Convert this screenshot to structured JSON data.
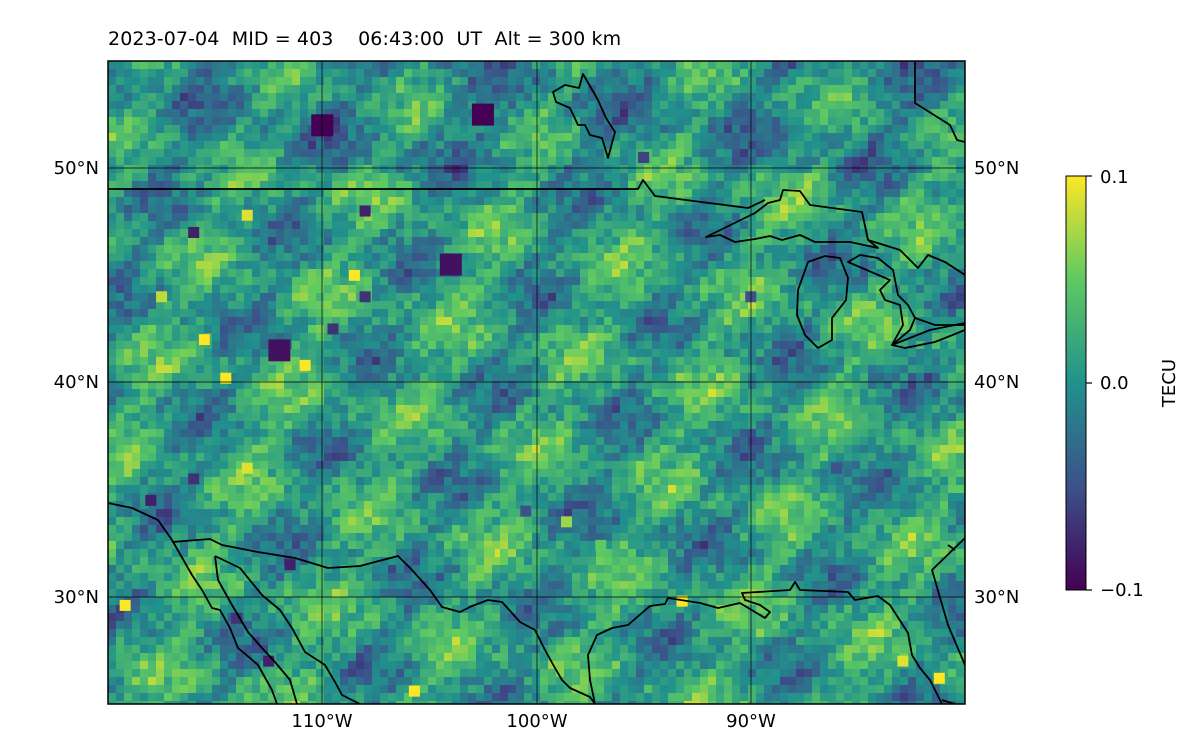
{
  "title": {
    "date": "2023-07-04",
    "mid": "MID = 403",
    "time": "06:43:00",
    "time_unit": "UT",
    "alt": "Alt = 300 km"
  },
  "map": {
    "projection": "PlateCarree",
    "lon_range": [
      -120,
      -80
    ],
    "lat_range": [
      25,
      55
    ],
    "gridlines": true,
    "features": [
      "coastlines",
      "borders"
    ]
  },
  "axes": {
    "lat_ticks": [
      {
        "value": 30,
        "label": "30°N"
      },
      {
        "value": 40,
        "label": "40°N"
      },
      {
        "value": 50,
        "label": "50°N"
      }
    ],
    "lon_ticks": [
      {
        "value": -110,
        "label": "110°W"
      },
      {
        "value": -100,
        "label": "100°W"
      },
      {
        "value": -90,
        "label": "90°W"
      }
    ]
  },
  "colorbar": {
    "label": "TECU",
    "colormap": "viridis",
    "min": -0.1,
    "max": 0.1,
    "ticks": [
      {
        "value": 0.1,
        "label": "0.1"
      },
      {
        "value": 0.0,
        "label": "0.0"
      },
      {
        "value": -0.1,
        "label": "−0.1"
      }
    ],
    "colors": [
      "#440154",
      "#3b528b",
      "#21918c",
      "#5ec962",
      "#fde725"
    ]
  },
  "chart_data": {
    "type": "heatmap",
    "x_axis": "longitude",
    "y_axis": "latitude",
    "value_unit": "TECU",
    "background_value": 0.01,
    "features": [
      {
        "name": "dark-blob",
        "lon": -110,
        "lat": 52,
        "value": -0.1
      },
      {
        "name": "dark-blob",
        "lon": -102.5,
        "lat": 52.5,
        "value": -0.1
      },
      {
        "name": "dark-blob",
        "lon": -104,
        "lat": 45.5,
        "value": -0.09
      },
      {
        "name": "dark-blob",
        "lon": -108,
        "lat": 48,
        "value": -0.08
      },
      {
        "name": "dark-blob",
        "lon": -115.5,
        "lat": 42,
        "value": -0.08
      },
      {
        "name": "dark-blob",
        "lon": -112,
        "lat": 41.5,
        "value": -0.09
      },
      {
        "name": "dark-blob",
        "lon": -116,
        "lat": 47,
        "value": -0.08
      },
      {
        "name": "dark-blob",
        "lon": -118,
        "lat": 34.5,
        "value": -0.08
      },
      {
        "name": "dark-blob",
        "lon": -116,
        "lat": 35.5,
        "value": -0.07
      },
      {
        "name": "dark-blob",
        "lon": -114,
        "lat": 29,
        "value": -0.07
      },
      {
        "name": "dark-blob",
        "lon": -112.5,
        "lat": 27,
        "value": -0.08
      },
      {
        "name": "dark-blob",
        "lon": -111.5,
        "lat": 31.5,
        "value": -0.08
      },
      {
        "name": "dark-blob",
        "lon": -108,
        "lat": 44,
        "value": -0.07
      },
      {
        "name": "dark-blob",
        "lon": -109.5,
        "lat": 42.5,
        "value": -0.07
      },
      {
        "name": "dark-blob",
        "lon": -100.5,
        "lat": 34,
        "value": -0.05
      },
      {
        "name": "dark-blob",
        "lon": -95,
        "lat": 50.5,
        "value": -0.06
      },
      {
        "name": "dark-blob",
        "lon": -90,
        "lat": 44,
        "value": -0.05
      },
      {
        "name": "dark-blob",
        "lon": -86,
        "lat": 36,
        "value": -0.05
      },
      {
        "name": "bright-spot",
        "lon": -115.5,
        "lat": 42,
        "value": 0.1
      },
      {
        "name": "bright-spot",
        "lon": -114.5,
        "lat": 40.2,
        "value": 0.1
      },
      {
        "name": "bright-spot",
        "lon": -113.5,
        "lat": 47.8,
        "value": 0.09
      },
      {
        "name": "bright-spot",
        "lon": -108.5,
        "lat": 45,
        "value": 0.1
      },
      {
        "name": "bright-spot",
        "lon": -110.8,
        "lat": 40.8,
        "value": 0.1
      },
      {
        "name": "bright-spot",
        "lon": -117.5,
        "lat": 44,
        "value": 0.08
      },
      {
        "name": "bright-spot",
        "lon": -119.2,
        "lat": 29.6,
        "value": 0.1
      },
      {
        "name": "bright-spot",
        "lon": -105.7,
        "lat": 25.6,
        "value": 0.1
      },
      {
        "name": "bright-spot",
        "lon": -93.2,
        "lat": 29.8,
        "value": 0.1
      },
      {
        "name": "bright-spot",
        "lon": -81.2,
        "lat": 26.2,
        "value": 0.1
      },
      {
        "name": "bright-spot",
        "lon": -82.9,
        "lat": 27,
        "value": 0.09
      },
      {
        "name": "bright-spot",
        "lon": -98.6,
        "lat": 33.5,
        "value": 0.07
      },
      {
        "name": "bright-spot",
        "lon": -102.2,
        "lat": 32.1,
        "value": 0.06
      },
      {
        "name": "bright-spot",
        "lon": -113.5,
        "lat": 36,
        "value": 0.09
      },
      {
        "name": "bright-spot",
        "lon": -97,
        "lat": 32.4,
        "value": 0.05
      }
    ]
  }
}
